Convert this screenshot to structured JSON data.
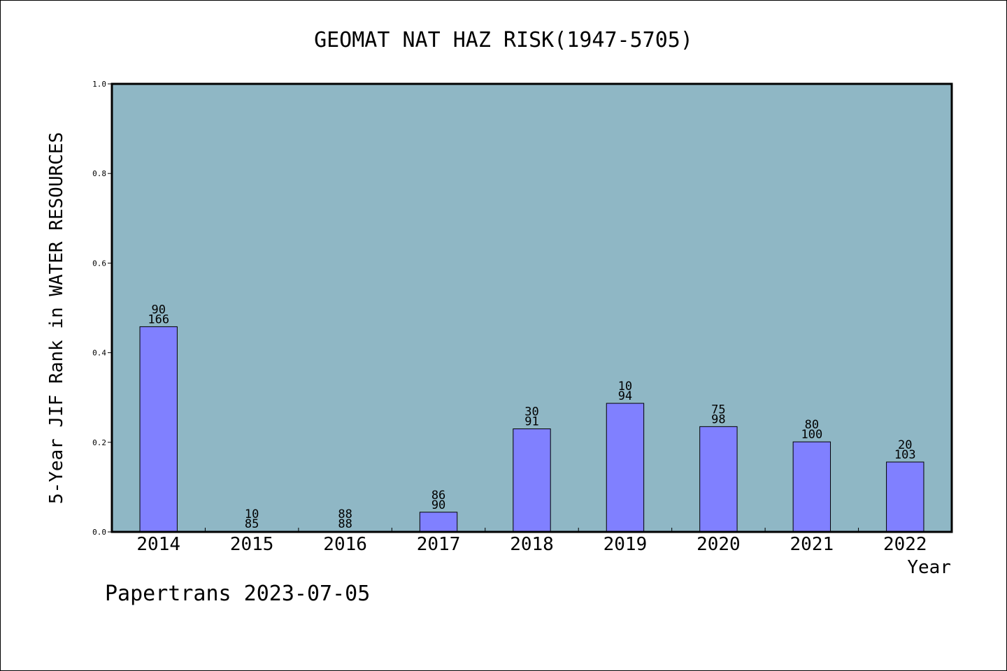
{
  "chart_data": {
    "type": "bar",
    "title": "GEOMAT NAT HAZ RISK(1947-5705)",
    "xlabel": "Year",
    "ylabel": "5-Year JIF Rank in WATER RESOURCES",
    "categories": [
      "2014",
      "2015",
      "2016",
      "2017",
      "2018",
      "2019",
      "2020",
      "2021",
      "2022"
    ],
    "values": [
      0.458,
      0.0,
      0.0,
      0.044,
      0.23,
      0.287,
      0.235,
      0.201,
      0.156
    ],
    "label_top": [
      "90",
      "10",
      "88",
      "86",
      "30",
      "10",
      "75",
      "80",
      "20"
    ],
    "label_bottom": [
      "166",
      "85",
      "88",
      "90",
      "91",
      "94",
      "98",
      "100",
      "103"
    ],
    "ylim": [
      0,
      1.0
    ],
    "yticks": [
      "0.0",
      "0.2",
      "0.4",
      "0.6",
      "0.8",
      "1.0"
    ],
    "grid": false,
    "colors": {
      "plot_bg": "#8fb7c5",
      "bar": "#8080ff"
    }
  },
  "footer": "Papertrans 2023-07-05"
}
